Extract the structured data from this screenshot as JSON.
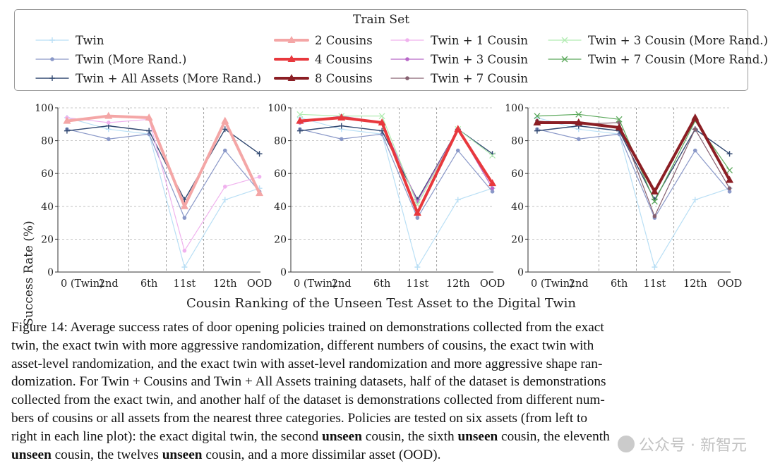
{
  "legend": {
    "title": "Train Set",
    "items": [
      {
        "label": "Twin",
        "color": "#b9dff5",
        "marker": "plus",
        "width": 1.2
      },
      {
        "label": "Twin (More Rand.)",
        "color": "#8a98c8",
        "marker": "dot",
        "width": 1.2
      },
      {
        "label": "Twin + All Assets (More Rand.)",
        "color": "#334a72",
        "marker": "plus",
        "width": 1.4
      },
      {
        "label": "2 Cousins",
        "color": "#f4a6a6",
        "marker": "triangle",
        "width": 4
      },
      {
        "label": "4 Cousins",
        "color": "#e8383d",
        "marker": "triangle",
        "width": 4
      },
      {
        "label": "8 Cousins",
        "color": "#8b1e24",
        "marker": "triangle",
        "width": 4
      },
      {
        "label": "Twin + 1 Cousin",
        "color": "#f0b2ee",
        "marker": "dot",
        "width": 1.2
      },
      {
        "label": "Twin + 3 Cousin",
        "color": "#b868c8",
        "marker": "dot",
        "width": 1.2
      },
      {
        "label": "Twin + 7 Cousin",
        "color": "#866070",
        "marker": "dot",
        "width": 1.2
      },
      {
        "label": "Twin + 3 Cousin (More Rand.)",
        "color": "#b2ecb2",
        "marker": "x",
        "width": 1.2
      },
      {
        "label": "Twin + 7 Cousin (More Rand.)",
        "color": "#5aa85a",
        "marker": "x",
        "width": 1.2
      }
    ]
  },
  "chart_data": {
    "type": "line",
    "xlabel": "Cousin Ranking of the Unseen Test Asset to the Digital Twin",
    "ylabel": "Success Rate (%)",
    "ylim": [
      0,
      100
    ],
    "yticks": [
      0,
      20,
      40,
      60,
      80,
      100
    ],
    "categories": [
      "0 (Twin)",
      "2nd",
      "6th",
      "11st",
      "12th",
      "OOD"
    ],
    "grid": "horizontal and vertical dashed",
    "panels": [
      {
        "series": [
          {
            "name": "Twin",
            "values": [
              94,
              87,
              84,
              3,
              44,
              51
            ]
          },
          {
            "name": "Twin (More Rand.)",
            "values": [
              87,
              81,
              84,
              33,
              74,
              49
            ]
          },
          {
            "name": "Twin + All Assets (More Rand.)",
            "values": [
              86,
              89,
              86,
              44,
              87,
              72
            ]
          },
          {
            "name": "Twin + 1 Cousin",
            "values": [
              94,
              91,
              93,
              13,
              52,
              58
            ]
          },
          {
            "name": "2 Cousins",
            "values": [
              92,
              95,
              94,
              40,
              92,
              48
            ]
          }
        ]
      },
      {
        "series": [
          {
            "name": "Twin",
            "values": [
              94,
              87,
              84,
              3,
              44,
              51
            ]
          },
          {
            "name": "Twin (More Rand.)",
            "values": [
              87,
              81,
              84,
              33,
              74,
              49
            ]
          },
          {
            "name": "Twin + All Assets (More Rand.)",
            "values": [
              86,
              89,
              86,
              44,
              87,
              72
            ]
          },
          {
            "name": "Twin + 3 Cousin (More Rand.)",
            "values": [
              96,
              95,
              95,
              41,
              87,
              71
            ]
          },
          {
            "name": "Twin + 3 Cousin",
            "values": [
              91,
              95,
              91,
              43,
              87,
              51
            ]
          },
          {
            "name": "4 Cousins",
            "values": [
              92,
              94,
              91,
              36,
              87,
              54
            ]
          }
        ]
      },
      {
        "series": [
          {
            "name": "Twin",
            "values": [
              94,
              87,
              84,
              3,
              44,
              51
            ]
          },
          {
            "name": "Twin (More Rand.)",
            "values": [
              87,
              81,
              84,
              33,
              74,
              49
            ]
          },
          {
            "name": "Twin + All Assets (More Rand.)",
            "values": [
              86,
              89,
              86,
              44,
              87,
              72
            ]
          },
          {
            "name": "Twin + 7 Cousin (More Rand.)",
            "values": [
              95,
              96,
              93,
              43,
              92,
              62
            ]
          },
          {
            "name": "Twin + 7 Cousin",
            "values": [
              92,
              90,
              91,
              34,
              87,
              51
            ]
          },
          {
            "name": "8 Cousins",
            "values": [
              91,
              91,
              88,
              49,
              94,
              56
            ]
          }
        ]
      }
    ]
  },
  "caption": {
    "l1": "Figure 14: Average success rates of door opening policies trained on demonstrations collected from the exact",
    "l2": "twin, the exact twin with more aggressive randomization, different numbers of cousins, the exact twin with",
    "l3": "asset-level randomization, and the exact twin with asset-level randomization and more aggressive shape ran-",
    "l4": "domization. For Twin + Cousins and Twin + All Assets training datasets, half of the dataset is demonstrations",
    "l5": "collected from the exact twin, and another half of the dataset is demonstrations collected from different num-",
    "l6": "bers of cousins or all assets from the nearest three categories.  Policies are tested on six assets (from left to",
    "l7a": "right in each line plot): the exact digital twin, the second ",
    "unseen": "unseen",
    "l7b": " cousin, the sixth ",
    "l7c": " cousin, the eleventh",
    "l8a": " cousin, the twelves ",
    "l8b": " cousin, and a more dissimilar asset (OOD)."
  },
  "watermark": "公众号 · 新智元"
}
